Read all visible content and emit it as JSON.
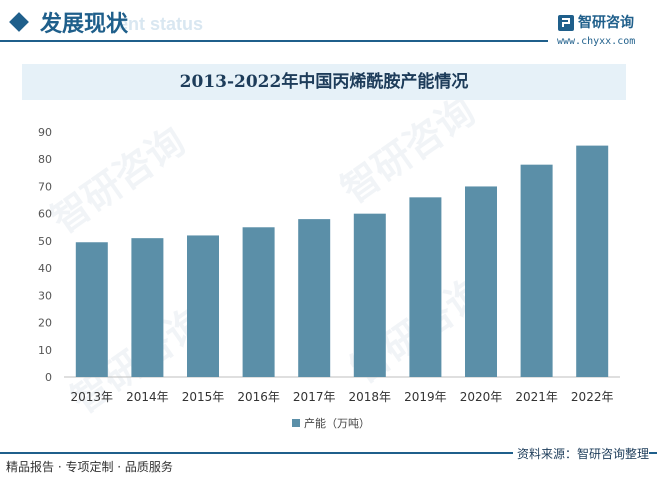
{
  "header": {
    "title": "发展现状",
    "subtitle": "ent status",
    "logo_name": "智研咨询",
    "logo_url": "www.chyxx.com"
  },
  "chart_data": {
    "type": "bar",
    "title": "2013-2022年中国丙烯酰胺产能情况",
    "categories": [
      "2013年",
      "2014年",
      "2015年",
      "2016年",
      "2017年",
      "2018年",
      "2019年",
      "2020年",
      "2021年",
      "2022年"
    ],
    "series": [
      {
        "name": "产能（万吨）",
        "values": [
          49.5,
          51,
          52,
          55,
          58,
          60,
          66,
          70,
          78,
          85
        ],
        "color": "#5b8fa8"
      }
    ],
    "ylim": [
      0,
      90
    ],
    "yticks": [
      0,
      10,
      20,
      30,
      40,
      50,
      60,
      70,
      80,
      90
    ],
    "grid": false,
    "legend_position": "bottom"
  },
  "footer": {
    "left_text": "精品报告 · 专项定制 · 品质服务",
    "source_text": "资料来源：智研咨询整理"
  },
  "watermark_text": "智研咨询"
}
